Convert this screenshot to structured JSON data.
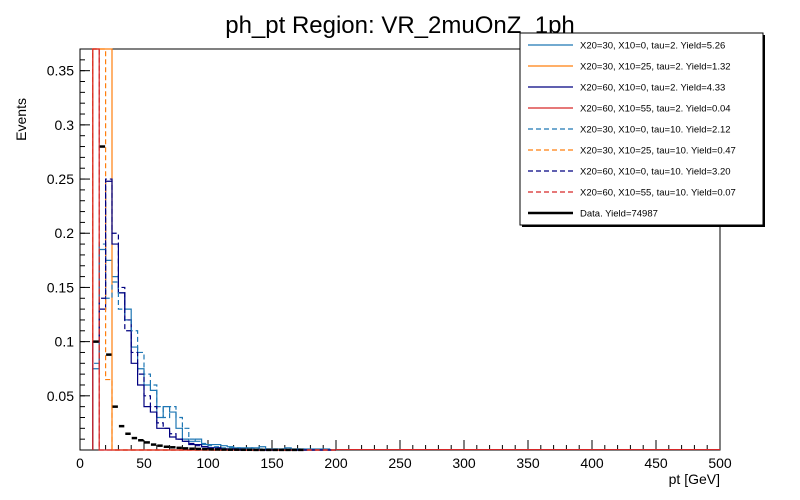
{
  "chart_data": {
    "type": "line",
    "title": "ph_pt Region: VR_2muOnZ_1ph",
    "xlabel": "pt [GeV]",
    "ylabel": "Events",
    "xlim": [
      0,
      500
    ],
    "ylim": [
      0,
      0.37
    ],
    "x_ticks": [
      "0",
      "50",
      "100",
      "150",
      "200",
      "250",
      "300",
      "350",
      "400",
      "450",
      "500"
    ],
    "y_ticks": [
      "0.05",
      "0.1",
      "0.15",
      "0.2",
      "0.25",
      "0.3",
      "0.35"
    ],
    "bin_edges": [
      10,
      15,
      20,
      25,
      30,
      35,
      40,
      45,
      50,
      55,
      60,
      65,
      70,
      75,
      80,
      85,
      90,
      95,
      100,
      105,
      110,
      115,
      120,
      125,
      130,
      135,
      140,
      145,
      150,
      155,
      160,
      165,
      170,
      175,
      180,
      185,
      190,
      195,
      200
    ],
    "legend_position": "top-right",
    "series": [
      {
        "name": "X20=30, X10=0, tau=2. Yield=5.26",
        "color": "#1f77b4",
        "style": "solid",
        "values": [
          0.075,
          0.185,
          0.175,
          0.16,
          0.145,
          0.13,
          0.095,
          0.075,
          0.06,
          0.055,
          0.03,
          0.04,
          0.035,
          0.02,
          0.01,
          0.008,
          0.01,
          0.005,
          0.005,
          0.005,
          0.004,
          0.003,
          0.002,
          0.002,
          0.002,
          0.002,
          0.003,
          0.001,
          0.001,
          0.001,
          0.002,
          0.001,
          0.001,
          0.001,
          0.001,
          0.001,
          0.001,
          0.0
        ]
      },
      {
        "name": "X20=30, X10=25, tau=2. Yield=1.32",
        "color": "#ff7f0e",
        "style": "solid",
        "values": [
          0.37,
          0.37,
          0.37,
          0.0,
          0.0,
          0.0,
          0.0,
          0.0,
          0.0,
          0.0,
          0.0,
          0.0,
          0.0,
          0.0,
          0.0,
          0.0,
          0.0,
          0.0,
          0.0,
          0.0,
          0.0,
          0.0,
          0.0,
          0.0,
          0.0,
          0.0,
          0.0,
          0.0,
          0.0,
          0.0,
          0.0,
          0.0,
          0.0,
          0.0,
          0.0,
          0.0,
          0.0,
          0.0
        ]
      },
      {
        "name": "X20=60, X10=0, tau=2. Yield=4.33",
        "color": "#000080",
        "style": "solid",
        "values": [
          0.1,
          0.13,
          0.248,
          0.19,
          0.145,
          0.12,
          0.08,
          0.06,
          0.04,
          0.035,
          0.02,
          0.02,
          0.012,
          0.01,
          0.008,
          0.005,
          0.005,
          0.003,
          0.002,
          0.002,
          0.001,
          0.001,
          0.001,
          0.001,
          0.0,
          0.0,
          0.0,
          0.0,
          0.0,
          0.0,
          0.0,
          0.0,
          0.0,
          0.0,
          0.0,
          0.0,
          0.0,
          0.0
        ]
      },
      {
        "name": "X20=60, X10=55, tau=2. Yield=0.04",
        "color": "#d62728",
        "style": "solid",
        "values": [
          0.37,
          0.0,
          0.0,
          0.0,
          0.0,
          0.0,
          0.0,
          0.0,
          0.0,
          0.0,
          0.0,
          0.0,
          0.0,
          0.0,
          0.0,
          0.0,
          0.0,
          0.0,
          0.0,
          0.0,
          0.0,
          0.0,
          0.0,
          0.0,
          0.0,
          0.0,
          0.0,
          0.0,
          0.0,
          0.0,
          0.0,
          0.0,
          0.0,
          0.0,
          0.0,
          0.0,
          0.0,
          0.0
        ]
      },
      {
        "name": "X20=30, X10=0, tau=10. Yield=2.12",
        "color": "#1f77b4",
        "style": "dashed",
        "values": [
          0.08,
          0.19,
          0.14,
          0.155,
          0.13,
          0.12,
          0.11,
          0.09,
          0.07,
          0.06,
          0.04,
          0.03,
          0.04,
          0.03,
          0.02,
          0.01,
          0.008,
          0.006,
          0.004,
          0.003,
          0.002,
          0.002,
          0.002,
          0.001,
          0.002,
          0.001,
          0.001,
          0.001,
          0.001,
          0.001,
          0.001,
          0.0,
          0.001,
          0.0,
          0.0,
          0.0,
          0.0,
          0.0
        ]
      },
      {
        "name": "X20=30, X10=25, tau=10. Yield=0.47",
        "color": "#ff7f0e",
        "style": "dashed",
        "values": [
          0.37,
          0.37,
          0.065,
          0.0,
          0.0,
          0.0,
          0.0,
          0.0,
          0.0,
          0.0,
          0.0,
          0.0,
          0.0,
          0.0,
          0.0,
          0.0,
          0.0,
          0.0,
          0.0,
          0.0,
          0.0,
          0.0,
          0.0,
          0.0,
          0.0,
          0.0,
          0.0,
          0.0,
          0.0,
          0.0,
          0.0,
          0.0,
          0.0,
          0.0,
          0.0,
          0.0,
          0.0,
          0.0
        ]
      },
      {
        "name": "X20=60, X10=0, tau=10. Yield=3.20",
        "color": "#000080",
        "style": "dashed",
        "values": [
          0.1,
          0.14,
          0.25,
          0.2,
          0.15,
          0.11,
          0.09,
          0.07,
          0.05,
          0.04,
          0.025,
          0.02,
          0.015,
          0.01,
          0.008,
          0.006,
          0.004,
          0.003,
          0.002,
          0.002,
          0.001,
          0.001,
          0.001,
          0.0,
          0.0,
          0.0,
          0.0,
          0.0,
          0.0,
          0.0,
          0.0,
          0.0,
          0.0,
          0.0,
          0.0,
          0.0,
          0.0,
          0.0
        ]
      },
      {
        "name": "X20=60, X10=55, tau=10. Yield=0.07",
        "color": "#d62728",
        "style": "dashed",
        "values": [
          0.37,
          0.0,
          0.0,
          0.0,
          0.0,
          0.0,
          0.0,
          0.0,
          0.0,
          0.0,
          0.0,
          0.0,
          0.0,
          0.0,
          0.0,
          0.0,
          0.0,
          0.0,
          0.0,
          0.0,
          0.0,
          0.0,
          0.0,
          0.0,
          0.0,
          0.0,
          0.0,
          0.0,
          0.0,
          0.0,
          0.0,
          0.0,
          0.0,
          0.0,
          0.0,
          0.0,
          0.0,
          0.0
        ]
      },
      {
        "name": "Data. Yield=74987",
        "color": "#000000",
        "style": "points",
        "values": [
          0.1,
          0.28,
          0.088,
          0.04,
          0.022,
          0.015,
          0.011,
          0.009,
          0.007,
          0.005,
          0.004,
          0.003,
          0.0025,
          0.002,
          0.0015,
          0.0012,
          0.001,
          0.0008,
          0.0006,
          0.0005,
          0.0004,
          0.0003,
          0.0003,
          0.0002,
          0.0002,
          0.0001,
          0.0001,
          0.0001,
          0.0001,
          0.0001,
          0.0001,
          0.0001,
          0.0001,
          0.0,
          0.0,
          0.0,
          0.0,
          0.0
        ]
      }
    ]
  }
}
